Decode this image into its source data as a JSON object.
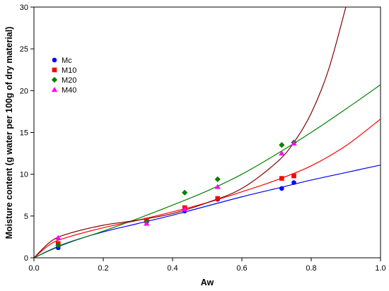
{
  "chart_data": {
    "type": "scatter",
    "title": "",
    "xlabel": "Aw",
    "ylabel": "Moisture content (g water per 100g of dry material)",
    "xlim": [
      0,
      1.0
    ],
    "ylim": [
      0,
      30
    ],
    "x_ticks": [
      "0.0",
      "0.2",
      "0.4",
      "0.6",
      "0.8",
      "1.0"
    ],
    "y_ticks": [
      "0",
      "5",
      "10",
      "15",
      "20",
      "25",
      "30"
    ],
    "grid": false,
    "legend_position": "top-left",
    "series": [
      {
        "name": "Mc",
        "marker": "circle",
        "color": "#0000ff",
        "points": [
          {
            "x": 0.07,
            "y": 1.2
          },
          {
            "x": 0.325,
            "y": 4.3
          },
          {
            "x": 0.435,
            "y": 5.6
          },
          {
            "x": 0.53,
            "y": 7.0
          },
          {
            "x": 0.715,
            "y": 8.3
          },
          {
            "x": 0.75,
            "y": 9.0
          }
        ],
        "fit_curve": [
          {
            "x": 0,
            "y": 0
          },
          {
            "x": 0.05,
            "y": 1.0
          },
          {
            "x": 0.1,
            "y": 1.85
          },
          {
            "x": 0.2,
            "y": 3.1
          },
          {
            "x": 0.3,
            "y": 4.1
          },
          {
            "x": 0.4,
            "y": 5.1
          },
          {
            "x": 0.5,
            "y": 6.2
          },
          {
            "x": 0.6,
            "y": 7.3
          },
          {
            "x": 0.7,
            "y": 8.3
          },
          {
            "x": 0.8,
            "y": 9.3
          },
          {
            "x": 0.9,
            "y": 10.2
          },
          {
            "x": 1.0,
            "y": 11.1
          }
        ]
      },
      {
        "name": "M10",
        "marker": "square",
        "color": "#ff0000",
        "points": [
          {
            "x": 0.07,
            "y": 1.7
          },
          {
            "x": 0.325,
            "y": 4.5
          },
          {
            "x": 0.435,
            "y": 6.0
          },
          {
            "x": 0.53,
            "y": 7.1
          },
          {
            "x": 0.715,
            "y": 9.5
          },
          {
            "x": 0.75,
            "y": 9.8
          }
        ],
        "fit_curve": [
          {
            "x": 0,
            "y": 0
          },
          {
            "x": 0.05,
            "y": 1.7
          },
          {
            "x": 0.1,
            "y": 2.5
          },
          {
            "x": 0.2,
            "y": 3.6
          },
          {
            "x": 0.3,
            "y": 4.5
          },
          {
            "x": 0.4,
            "y": 5.5
          },
          {
            "x": 0.5,
            "y": 6.6
          },
          {
            "x": 0.6,
            "y": 7.9
          },
          {
            "x": 0.7,
            "y": 9.3
          },
          {
            "x": 0.8,
            "y": 11.0
          },
          {
            "x": 0.9,
            "y": 13.4
          },
          {
            "x": 1.0,
            "y": 16.6
          }
        ]
      },
      {
        "name": "M20",
        "marker": "diamond",
        "color": "#008000",
        "points": [
          {
            "x": 0.07,
            "y": 1.5
          },
          {
            "x": 0.325,
            "y": 4.3
          },
          {
            "x": 0.435,
            "y": 7.8
          },
          {
            "x": 0.53,
            "y": 9.4
          },
          {
            "x": 0.715,
            "y": 13.5
          },
          {
            "x": 0.75,
            "y": 13.8
          }
        ],
        "fit_curve": [
          {
            "x": 0,
            "y": 0
          },
          {
            "x": 0.05,
            "y": 0.95
          },
          {
            "x": 0.1,
            "y": 1.8
          },
          {
            "x": 0.2,
            "y": 3.2
          },
          {
            "x": 0.3,
            "y": 4.7
          },
          {
            "x": 0.4,
            "y": 6.3
          },
          {
            "x": 0.5,
            "y": 8.0
          },
          {
            "x": 0.6,
            "y": 10.0
          },
          {
            "x": 0.7,
            "y": 12.4
          },
          {
            "x": 0.8,
            "y": 15.0
          },
          {
            "x": 0.9,
            "y": 17.8
          },
          {
            "x": 1.0,
            "y": 20.7
          }
        ]
      },
      {
        "name": "M40",
        "marker": "triangle",
        "color": "#ff00ff",
        "points": [
          {
            "x": 0.07,
            "y": 2.4
          },
          {
            "x": 0.325,
            "y": 4.1
          },
          {
            "x": 0.435,
            "y": 5.8
          },
          {
            "x": 0.53,
            "y": 8.5
          },
          {
            "x": 0.715,
            "y": 12.5
          },
          {
            "x": 0.75,
            "y": 13.7
          }
        ],
        "fit_curve": [
          {
            "x": 0,
            "y": 0
          },
          {
            "x": 0.05,
            "y": 2.0
          },
          {
            "x": 0.1,
            "y": 2.9
          },
          {
            "x": 0.2,
            "y": 3.9
          },
          {
            "x": 0.3,
            "y": 4.5
          },
          {
            "x": 0.4,
            "y": 5.3
          },
          {
            "x": 0.5,
            "y": 6.6
          },
          {
            "x": 0.6,
            "y": 8.3
          },
          {
            "x": 0.7,
            "y": 11.4
          },
          {
            "x": 0.75,
            "y": 13.8
          },
          {
            "x": 0.8,
            "y": 17.3
          },
          {
            "x": 0.85,
            "y": 22.5
          },
          {
            "x": 0.9,
            "y": 30.0
          }
        ],
        "fit_color": "#800000"
      }
    ]
  }
}
